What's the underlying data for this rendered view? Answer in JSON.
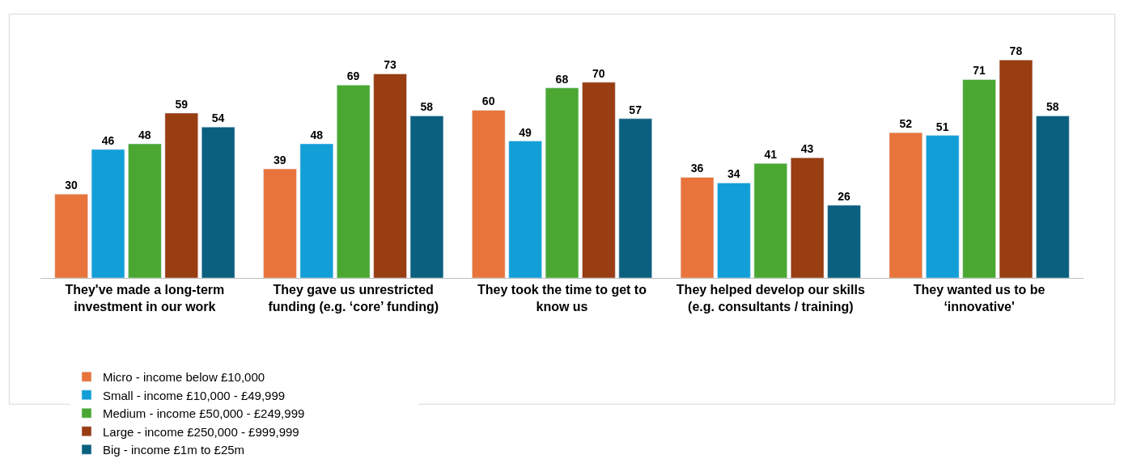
{
  "chart_data": {
    "type": "bar",
    "categories": [
      "They've made a long-term investment in our work",
      "They gave us unrestricted funding (e.g. ‘core’ funding)",
      "They took the time to get to know us",
      "They helped develop our skills (e.g. consultants / training)",
      "They wanted us to be ‘innovative'"
    ],
    "series": [
      {
        "name": "Micro - income below £10,000",
        "color": "#e8743b",
        "values": [
          30,
          39,
          60,
          36,
          52
        ]
      },
      {
        "name": "Small - income £10,000 - £49,999",
        "color": "#129fd8",
        "values": [
          46,
          48,
          49,
          34,
          51
        ]
      },
      {
        "name": "Medium - income £50,000 - £249,999",
        "color": "#4aa832",
        "values": [
          48,
          69,
          68,
          41,
          71
        ]
      },
      {
        "name": "Large - income £250,000 - £999,999",
        "color": "#993d12",
        "values": [
          59,
          73,
          70,
          43,
          78
        ]
      },
      {
        "name": "Big - income £1m to £25m",
        "color": "#0b5f7f",
        "values": [
          54,
          58,
          57,
          26,
          58
        ]
      }
    ],
    "data_labels": true,
    "legend": "bottom"
  }
}
